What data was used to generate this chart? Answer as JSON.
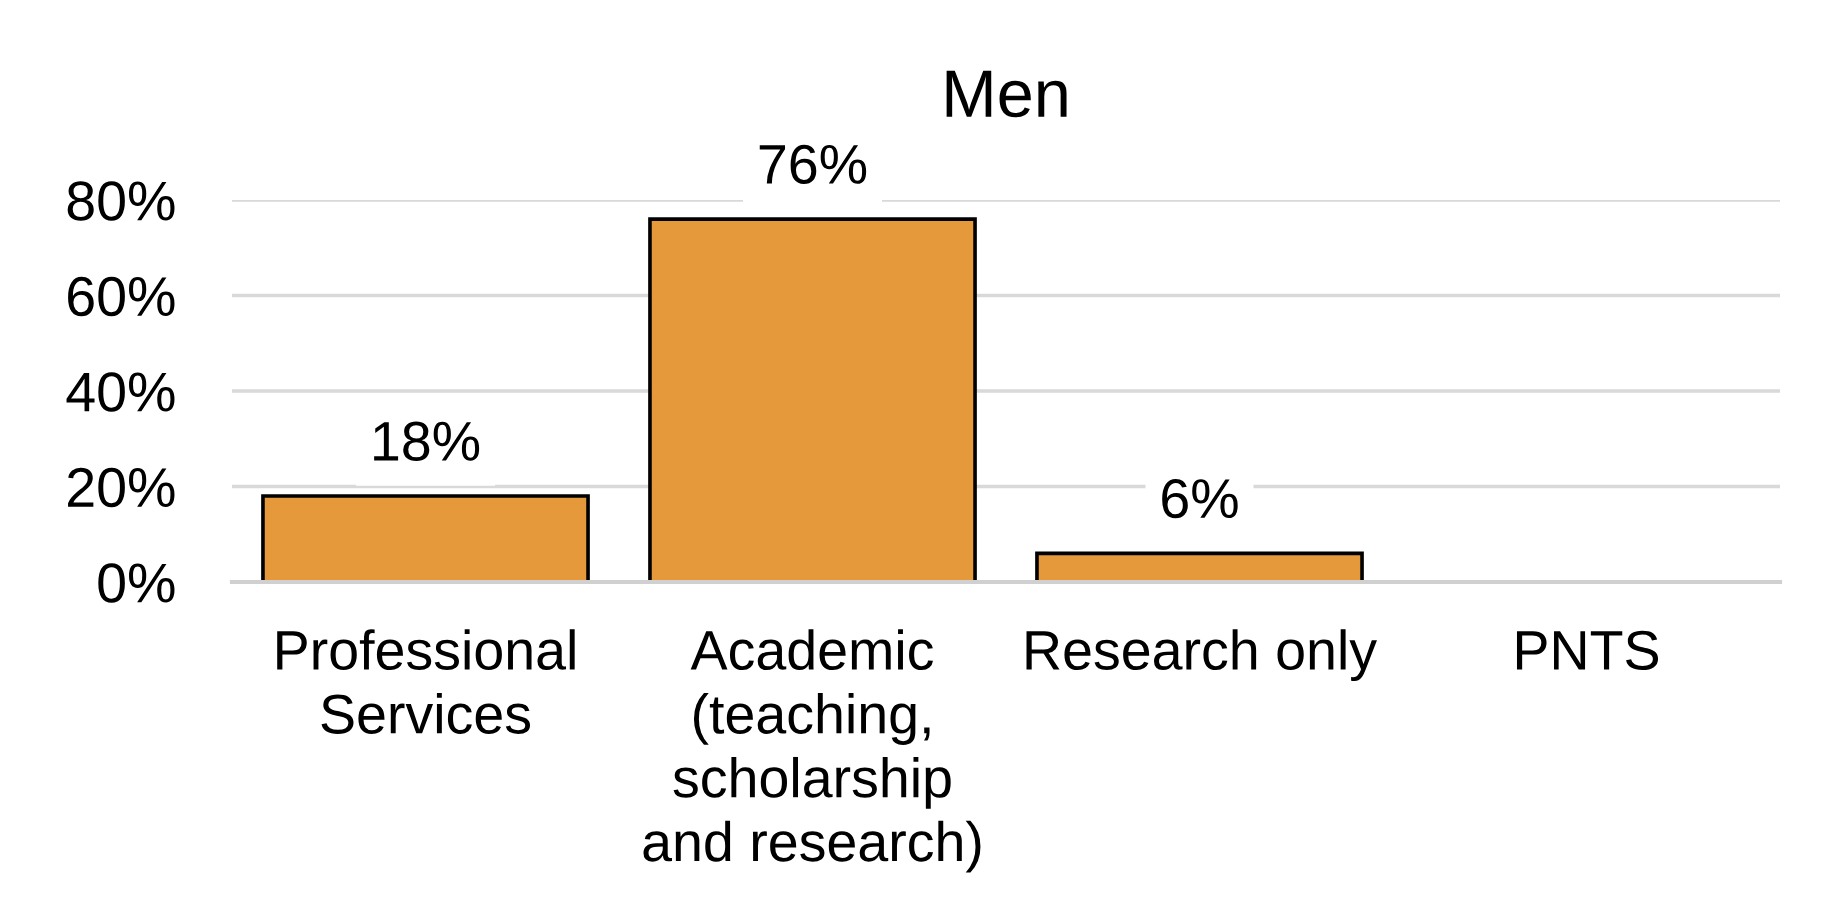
{
  "chart_data": {
    "type": "bar",
    "title": "Men",
    "categories": [
      "Professional\nServices",
      "Academic\n(teaching,\nscholarship\nand research)",
      "Research only",
      "PNTS"
    ],
    "values": [
      18,
      76,
      6,
      null
    ],
    "value_labels": [
      "18%",
      "76%",
      "6%",
      null
    ],
    "color": "#e6993a",
    "ylim": [
      0,
      80
    ],
    "yticks": [
      {
        "value": 0,
        "label": "0%"
      },
      {
        "value": 20,
        "label": "20%"
      },
      {
        "value": 40,
        "label": "40%"
      },
      {
        "value": 60,
        "label": "60%"
      },
      {
        "value": 80,
        "label": "80%"
      }
    ],
    "grid": "y"
  }
}
